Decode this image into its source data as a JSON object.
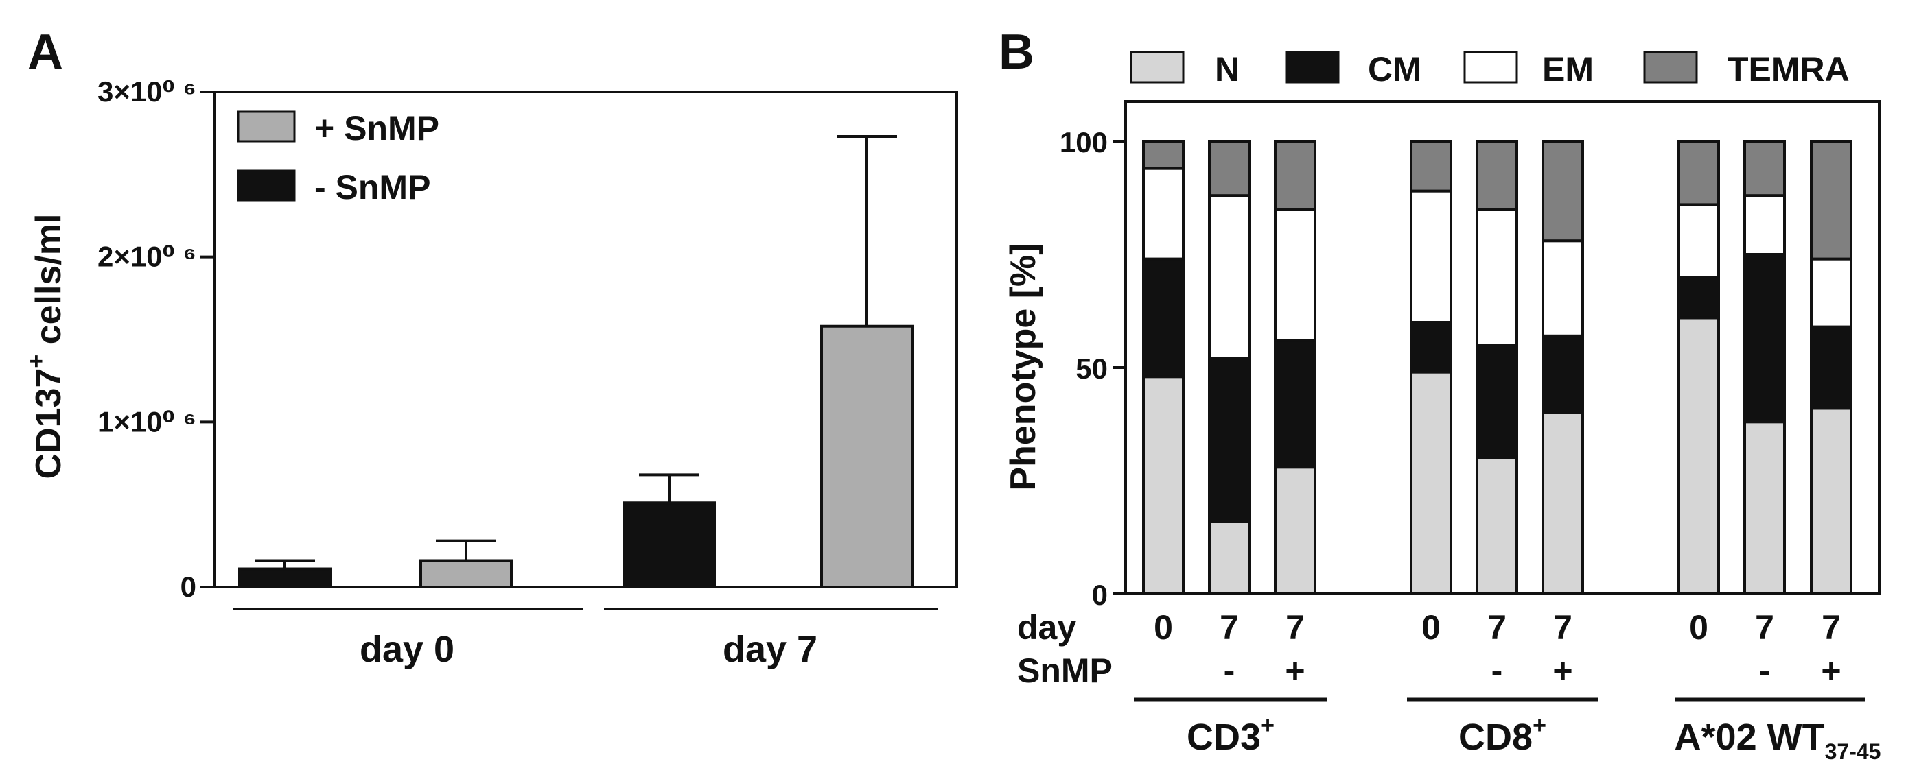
{
  "colors": {
    "light": "#d6d6d6",
    "black": "#111111",
    "white": "#ffffff",
    "dark_gray": "#808080",
    "gray": "#adadad"
  },
  "chart_data": [
    {
      "panel": "A",
      "type": "bar",
      "ylabel": {
        "main": "CD137",
        "sup": "+",
        "rest": " cells/ml"
      },
      "ylim": [
        0,
        3000000
      ],
      "ytick_values": [
        0,
        1000000,
        2000000,
        3000000
      ],
      "ytick_labels": [
        "0",
        "1×10⁰ ⁶",
        "2×10⁰ ⁶",
        "3×10⁰ ⁶"
      ],
      "groups": [
        "day 0",
        "day 7"
      ],
      "series": [
        {
          "name": "- SnMP",
          "legend_label": "- SnMP",
          "color_key": "black",
          "values": [
            110000,
            510000
          ],
          "errors": [
            50000,
            170000
          ]
        },
        {
          "name": "+ SnMP",
          "legend_label": "+ SnMP",
          "color_key": "gray",
          "values": [
            160000,
            1580000
          ],
          "errors": [
            120000,
            1150000
          ]
        }
      ],
      "bars": [
        {
          "group": 0,
          "series": 0
        },
        {
          "group": 0,
          "series": 1
        },
        {
          "group": 1,
          "series": 0
        },
        {
          "group": 1,
          "series": 1
        }
      ]
    },
    {
      "panel": "B",
      "type": "bar",
      "stacked": true,
      "ylabel": "Phenotype [%]",
      "ylim": [
        0,
        100
      ],
      "ytick_values": [
        0,
        50,
        100
      ],
      "ytick_labels": [
        "0",
        "50",
        "100"
      ],
      "legend": [
        {
          "label": "N",
          "color_key": "light"
        },
        {
          "label": "CM",
          "color_key": "black"
        },
        {
          "label": "EM",
          "color_key": "white"
        },
        {
          "label": "TEMRA",
          "color_key": "dark_gray"
        }
      ],
      "row_labels": {
        "day": "day",
        "snmp": "SnMP"
      },
      "groups": [
        {
          "label": "CD3",
          "sup": "+",
          "sub": ""
        },
        {
          "label": "CD8",
          "sup": "+",
          "sub": ""
        },
        {
          "label": "A*02 WT",
          "sup": "",
          "sub": "37-45"
        }
      ],
      "bars": [
        {
          "group": 0,
          "day": "0",
          "snmp": "",
          "N": 48,
          "CM": 26,
          "EM": 20,
          "TEMRA": 6
        },
        {
          "group": 0,
          "day": "7",
          "snmp": "-",
          "N": 16,
          "CM": 36,
          "EM": 36,
          "TEMRA": 12
        },
        {
          "group": 0,
          "day": "7",
          "snmp": "+",
          "N": 28,
          "CM": 28,
          "EM": 29,
          "TEMRA": 15
        },
        {
          "group": 1,
          "day": "0",
          "snmp": "",
          "N": 49,
          "CM": 11,
          "EM": 29,
          "TEMRA": 11
        },
        {
          "group": 1,
          "day": "7",
          "snmp": "-",
          "N": 30,
          "CM": 25,
          "EM": 30,
          "TEMRA": 15
        },
        {
          "group": 1,
          "day": "7",
          "snmp": "+",
          "N": 40,
          "CM": 17,
          "EM": 21,
          "TEMRA": 22
        },
        {
          "group": 2,
          "day": "0",
          "snmp": "",
          "N": 61,
          "CM": 9,
          "EM": 16,
          "TEMRA": 14
        },
        {
          "group": 2,
          "day": "7",
          "snmp": "-",
          "N": 38,
          "CM": 37,
          "EM": 13,
          "TEMRA": 12
        },
        {
          "group": 2,
          "day": "7",
          "snmp": "+",
          "N": 41,
          "CM": 18,
          "EM": 15,
          "TEMRA": 26
        }
      ]
    }
  ]
}
